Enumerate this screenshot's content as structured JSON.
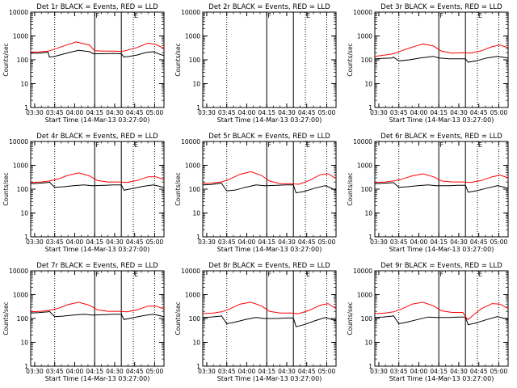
{
  "colors": {
    "events": "#000000",
    "lld": "#ff0000",
    "axis": "#000000",
    "background": "#ffffff"
  },
  "chart_data": [
    {
      "panel": "1r",
      "title": "Det 1r BLACK = Events, RED = LLD",
      "type": "line",
      "xlabel": "Start Time (14-Mar-13 03:27:00)",
      "ylabel": "Counts/sec",
      "y_scale": "log",
      "ylim": [
        1,
        10000
      ],
      "yticks": [
        1,
        10,
        100,
        1000,
        10000
      ],
      "xticks": [
        "03:30",
        "03:45",
        "04:00",
        "04:15",
        "04:30",
        "04:45",
        "05:00"
      ],
      "xlim_minutes": [
        0,
        100
      ],
      "solid_vlines": [
        48,
        68
      ],
      "dotted_vlines": [
        18,
        77,
        93
      ],
      "annotations": [
        {
          "text": "F",
          "x": 48
        },
        {
          "text": "E",
          "x": 77
        }
      ],
      "series": [
        {
          "name": "Events",
          "color": "#000000",
          "x": [
            0,
            6,
            10,
            13,
            14,
            18,
            22,
            30,
            36,
            44,
            47,
            48,
            49,
            55,
            62,
            68,
            70,
            74,
            80,
            86,
            92,
            97,
            100
          ],
          "y": [
            190,
            190,
            200,
            210,
            130,
            140,
            160,
            210,
            250,
            220,
            180,
            180,
            180,
            180,
            185,
            180,
            130,
            140,
            160,
            200,
            220,
            170,
            150
          ]
        },
        {
          "name": "LLD",
          "color": "#ff0000",
          "x": [
            0,
            6,
            13,
            14,
            18,
            26,
            34,
            44,
            48,
            56,
            64,
            68,
            72,
            80,
            88,
            94,
            100
          ],
          "y": [
            210,
            215,
            230,
            240,
            280,
            400,
            560,
            420,
            240,
            230,
            230,
            220,
            250,
            330,
            500,
            440,
            300
          ]
        }
      ]
    },
    {
      "panel": "2r",
      "title": "Det 2r BLACK = Events, RED = LLD",
      "type": "line",
      "xlabel": "Start Time (14-Mar-13 03:27:00)",
      "ylabel": "Counts/sec",
      "y_scale": "log",
      "ylim": [
        1,
        10000
      ],
      "yticks": [
        1,
        10,
        100,
        1000,
        10000
      ],
      "xticks": [
        "03:30",
        "03:45",
        "04:00",
        "04:15",
        "04:30",
        "04:45",
        "05:00"
      ],
      "xlim_minutes": [
        0,
        100
      ],
      "solid_vlines": [
        48,
        68
      ],
      "dotted_vlines": [
        18,
        77,
        93
      ],
      "annotations": [
        {
          "text": "F",
          "x": 48
        },
        {
          "text": "E",
          "x": 77
        }
      ],
      "series": []
    },
    {
      "panel": "3r",
      "title": "Det 3r BLACK = Events, RED = LLD",
      "type": "line",
      "xlabel": "Start Time (14-Mar-13 03:27:00)",
      "ylabel": "Counts/sec",
      "y_scale": "log",
      "ylim": [
        1,
        10000
      ],
      "yticks": [
        1,
        10,
        100,
        1000,
        10000
      ],
      "xticks": [
        "03:30",
        "03:45",
        "04:00",
        "04:15",
        "04:30",
        "04:45",
        "05:00"
      ],
      "xlim_minutes": [
        0,
        100
      ],
      "solid_vlines": [
        48,
        68
      ],
      "dotted_vlines": [
        18,
        77,
        93
      ],
      "annotations": [
        {
          "text": "F",
          "x": 48
        },
        {
          "text": "E",
          "x": 77
        }
      ],
      "series": [
        {
          "name": "Events",
          "color": "#000000",
          "x": [
            0,
            6,
            13,
            14,
            18,
            26,
            34,
            44,
            48,
            56,
            62,
            68,
            70,
            76,
            84,
            92,
            100
          ],
          "y": [
            110,
            115,
            120,
            130,
            90,
            100,
            120,
            140,
            120,
            110,
            110,
            110,
            80,
            90,
            120,
            140,
            120
          ]
        },
        {
          "name": "LLD",
          "color": "#ff0000",
          "x": [
            0,
            8,
            14,
            20,
            28,
            36,
            44,
            50,
            58,
            66,
            72,
            80,
            88,
            94,
            100
          ],
          "y": [
            140,
            160,
            180,
            240,
            340,
            460,
            380,
            230,
            190,
            200,
            190,
            240,
            360,
            420,
            320
          ]
        }
      ]
    },
    {
      "panel": "4r",
      "title": "Det 4r BLACK = Events, RED = LLD",
      "type": "line",
      "xlabel": "Start Time (14-Mar-13 03:27:00)",
      "ylabel": "Counts/sec",
      "y_scale": "log",
      "ylim": [
        1,
        10000
      ],
      "yticks": [
        1,
        10,
        100,
        1000,
        10000
      ],
      "xticks": [
        "03:30",
        "03:45",
        "04:00",
        "04:15",
        "04:30",
        "04:45",
        "05:00"
      ],
      "xlim_minutes": [
        0,
        100
      ],
      "solid_vlines": [
        48,
        68
      ],
      "dotted_vlines": [
        18,
        77,
        93
      ],
      "annotations": [
        {
          "text": "F",
          "x": 48
        },
        {
          "text": "E",
          "x": 77
        }
      ],
      "series": [
        {
          "name": "Events",
          "color": "#000000",
          "x": [
            0,
            6,
            13,
            14,
            18,
            24,
            32,
            40,
            46,
            48,
            56,
            62,
            68,
            70,
            76,
            84,
            92,
            100
          ],
          "y": [
            170,
            175,
            190,
            200,
            120,
            125,
            140,
            150,
            140,
            140,
            145,
            150,
            150,
            90,
            105,
            130,
            150,
            120
          ]
        },
        {
          "name": "LLD",
          "color": "#ff0000",
          "x": [
            0,
            8,
            14,
            20,
            28,
            36,
            44,
            50,
            58,
            66,
            72,
            80,
            88,
            94,
            100
          ],
          "y": [
            190,
            200,
            220,
            260,
            380,
            480,
            360,
            230,
            200,
            200,
            190,
            230,
            330,
            330,
            250
          ]
        }
      ]
    },
    {
      "panel": "5r",
      "title": "Det 5r BLACK = Events, RED = LLD",
      "type": "line",
      "xlabel": "Start Time (14-Mar-13 03:27:00)",
      "ylabel": "Counts/sec",
      "y_scale": "log",
      "ylim": [
        1,
        10000
      ],
      "yticks": [
        1,
        10,
        100,
        1000,
        10000
      ],
      "xticks": [
        "03:30",
        "03:45",
        "04:00",
        "04:15",
        "04:30",
        "04:45",
        "05:00"
      ],
      "xlim_minutes": [
        0,
        100
      ],
      "solid_vlines": [
        48,
        68
      ],
      "dotted_vlines": [
        18,
        77,
        93
      ],
      "annotations": [
        {
          "text": "F",
          "x": 48
        },
        {
          "text": "E",
          "x": 77
        }
      ],
      "series": [
        {
          "name": "Events",
          "color": "#000000",
          "x": [
            0,
            6,
            13,
            14,
            18,
            24,
            32,
            40,
            46,
            48,
            56,
            62,
            68,
            70,
            76,
            84,
            92,
            100
          ],
          "y": [
            150,
            155,
            175,
            180,
            85,
            90,
            120,
            150,
            140,
            140,
            145,
            150,
            150,
            70,
            80,
            110,
            140,
            90
          ]
        },
        {
          "name": "LLD",
          "color": "#ff0000",
          "x": [
            0,
            6,
            14,
            20,
            28,
            36,
            44,
            50,
            58,
            66,
            72,
            80,
            88,
            94,
            100
          ],
          "y": [
            170,
            180,
            200,
            260,
            420,
            540,
            380,
            220,
            170,
            170,
            160,
            230,
            400,
            440,
            280
          ]
        }
      ]
    },
    {
      "panel": "6r",
      "title": "Det 6r BLACK = Events, RED = LLD",
      "type": "line",
      "xlabel": "Start Time (14-Mar-13 03:27:00)",
      "ylabel": "Counts/sec",
      "y_scale": "log",
      "ylim": [
        1,
        10000
      ],
      "yticks": [
        1,
        10,
        100,
        1000,
        10000
      ],
      "xticks": [
        "03:30",
        "03:45",
        "04:00",
        "04:15",
        "04:30",
        "04:45",
        "05:00"
      ],
      "xlim_minutes": [
        0,
        100
      ],
      "solid_vlines": [
        48,
        68
      ],
      "dotted_vlines": [
        18,
        77,
        93
      ],
      "annotations": [
        {
          "text": "F",
          "x": 48
        },
        {
          "text": "E",
          "x": 77
        }
      ],
      "series": [
        {
          "name": "Events",
          "color": "#000000",
          "x": [
            0,
            6,
            13,
            14,
            18,
            24,
            32,
            40,
            46,
            48,
            56,
            62,
            68,
            70,
            76,
            84,
            92,
            100
          ],
          "y": [
            170,
            175,
            185,
            190,
            120,
            125,
            140,
            150,
            140,
            140,
            140,
            145,
            145,
            75,
            85,
            110,
            140,
            110
          ]
        },
        {
          "name": "LLD",
          "color": "#ff0000",
          "x": [
            0,
            8,
            14,
            20,
            28,
            36,
            44,
            50,
            58,
            66,
            72,
            80,
            88,
            94,
            100
          ],
          "y": [
            190,
            200,
            220,
            260,
            360,
            440,
            330,
            220,
            200,
            200,
            190,
            230,
            330,
            390,
            300
          ]
        }
      ]
    },
    {
      "panel": "7r",
      "title": "Det 7r BLACK = Events, RED = LLD",
      "type": "line",
      "xlabel": "Start Time (14-Mar-13 03:27:00)",
      "ylabel": "Counts/sec",
      "y_scale": "log",
      "ylim": [
        1,
        10000
      ],
      "yticks": [
        1,
        10,
        100,
        1000,
        10000
      ],
      "xticks": [
        "03:30",
        "03:45",
        "04:00",
        "04:15",
        "04:30",
        "04:45",
        "05:00"
      ],
      "xlim_minutes": [
        0,
        100
      ],
      "solid_vlines": [
        48,
        68
      ],
      "dotted_vlines": [
        18,
        77,
        93
      ],
      "annotations": [
        {
          "text": "F",
          "x": 48
        },
        {
          "text": "E",
          "x": 77
        }
      ],
      "series": [
        {
          "name": "Events",
          "color": "#000000",
          "x": [
            0,
            6,
            13,
            14,
            18,
            24,
            32,
            40,
            46,
            48,
            56,
            62,
            68,
            70,
            76,
            84,
            92,
            100
          ],
          "y": [
            170,
            175,
            190,
            200,
            120,
            125,
            140,
            150,
            140,
            140,
            145,
            150,
            150,
            90,
            105,
            130,
            150,
            120
          ]
        },
        {
          "name": "LLD",
          "color": "#ff0000",
          "x": [
            0,
            8,
            14,
            20,
            28,
            36,
            44,
            50,
            58,
            66,
            72,
            80,
            88,
            94,
            100
          ],
          "y": [
            190,
            200,
            220,
            260,
            380,
            480,
            360,
            230,
            200,
            200,
            190,
            230,
            330,
            330,
            250
          ]
        }
      ]
    },
    {
      "panel": "8r",
      "title": "Det 8r BLACK = Events, RED = LLD",
      "type": "line",
      "xlabel": "Start Time (14-Mar-13 03:27:00)",
      "ylabel": "Counts/sec",
      "y_scale": "log",
      "ylim": [
        1,
        10000
      ],
      "yticks": [
        1,
        10,
        100,
        1000,
        10000
      ],
      "xticks": [
        "03:30",
        "03:45",
        "04:00",
        "04:15",
        "04:30",
        "04:45",
        "05:00"
      ],
      "xlim_minutes": [
        0,
        100
      ],
      "solid_vlines": [
        48,
        68
      ],
      "dotted_vlines": [
        18,
        77,
        93
      ],
      "annotations": [
        {
          "text": "F",
          "x": 48
        },
        {
          "text": "E",
          "x": 77
        }
      ],
      "series": [
        {
          "name": "Events",
          "color": "#000000",
          "x": [
            0,
            6,
            13,
            14,
            18,
            24,
            32,
            40,
            46,
            48,
            56,
            62,
            68,
            70,
            76,
            84,
            92,
            100
          ],
          "y": [
            110,
            115,
            125,
            130,
            60,
            70,
            90,
            110,
            100,
            100,
            100,
            105,
            105,
            45,
            55,
            80,
            110,
            80
          ]
        },
        {
          "name": "LLD",
          "color": "#ff0000",
          "x": [
            0,
            8,
            14,
            20,
            28,
            36,
            44,
            50,
            58,
            66,
            72,
            80,
            88,
            94,
            100
          ],
          "y": [
            160,
            170,
            190,
            250,
            400,
            480,
            340,
            200,
            170,
            170,
            160,
            220,
            360,
            420,
            260
          ]
        }
      ]
    },
    {
      "panel": "9r",
      "title": "Det 9r BLACK = Events, RED = LLD",
      "type": "line",
      "xlabel": "Start Time (14-Mar-13 03:27:00)",
      "ylabel": "Counts/sec",
      "y_scale": "log",
      "ylim": [
        1,
        10000
      ],
      "yticks": [
        1,
        10,
        100,
        1000,
        10000
      ],
      "xticks": [
        "03:30",
        "03:45",
        "04:00",
        "04:15",
        "04:30",
        "04:45",
        "05:00"
      ],
      "xlim_minutes": [
        0,
        100
      ],
      "solid_vlines": [
        48,
        68
      ],
      "dotted_vlines": [
        18,
        77,
        93
      ],
      "annotations": [
        {
          "text": "F",
          "x": 48
        },
        {
          "text": "E",
          "x": 77
        }
      ],
      "series": [
        {
          "name": "Events",
          "color": "#000000",
          "x": [
            0,
            6,
            13,
            14,
            18,
            24,
            32,
            40,
            46,
            48,
            56,
            62,
            68,
            70,
            76,
            84,
            92,
            100
          ],
          "y": [
            110,
            115,
            125,
            130,
            60,
            70,
            90,
            115,
            110,
            110,
            110,
            115,
            115,
            55,
            65,
            90,
            120,
            90
          ]
        },
        {
          "name": "LLD",
          "color": "#ff0000",
          "x": [
            0,
            8,
            14,
            20,
            28,
            36,
            44,
            50,
            58,
            66,
            68,
            70,
            74,
            80,
            88,
            94,
            100
          ],
          "y": [
            160,
            170,
            190,
            250,
            400,
            480,
            340,
            210,
            180,
            180,
            120,
            90,
            140,
            260,
            420,
            400,
            260
          ]
        }
      ]
    }
  ]
}
